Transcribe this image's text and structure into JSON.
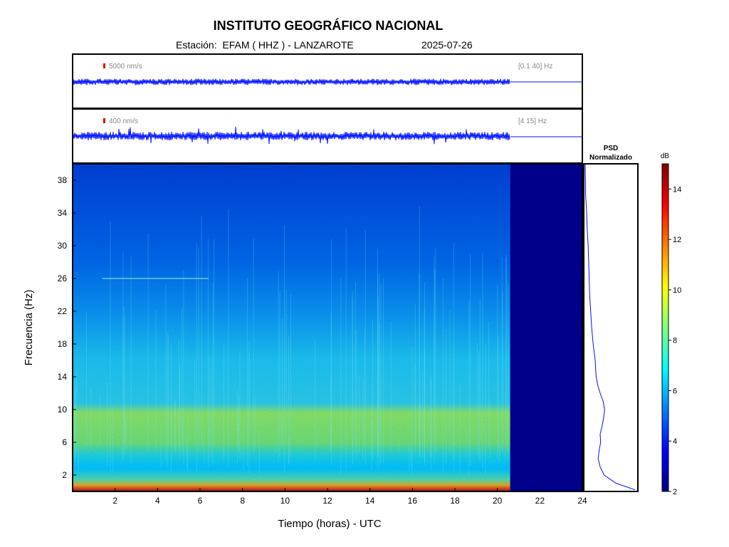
{
  "header": {
    "title": "INSTITUTO GEOGRÁFICO NACIONAL",
    "station_label": "Estación:",
    "station": "EFAM ( HHZ ) - LANZAROTE",
    "date": "2025-07-26"
  },
  "chart_data": [
    {
      "type": "line",
      "panel": "seismogram-broadband",
      "scale_label": "5000 nm/s",
      "band_label": "[0.1 40] Hz",
      "data_end_hour": 20.6,
      "x_range": [
        0,
        24
      ],
      "xlim": [
        0,
        24
      ]
    },
    {
      "type": "line",
      "panel": "seismogram-filtered",
      "scale_label": "400 nm/s",
      "band_label": "[4 15] Hz",
      "data_end_hour": 20.6,
      "xlim": [
        0,
        24
      ]
    },
    {
      "type": "heatmap",
      "panel": "spectrogram",
      "xlabel": "Tiempo (horas) - UTC",
      "ylabel": "Frecuencia  (Hz)",
      "xlim": [
        0,
        24
      ],
      "ylim": [
        0,
        40
      ],
      "x_ticks": [
        2,
        4,
        6,
        8,
        10,
        12,
        14,
        16,
        18,
        20,
        22,
        24
      ],
      "y_ticks": [
        2,
        6,
        10,
        14,
        18,
        22,
        26,
        30,
        34,
        38
      ],
      "data_end_hour": 20.6
    },
    {
      "type": "line",
      "panel": "psd",
      "title": "PSD\nNormalizado",
      "title_lines": [
        "PSD",
        "Normalizado"
      ],
      "frequency_hz": [
        0.2,
        1,
        2,
        3,
        4,
        5,
        6,
        7,
        8,
        9,
        10,
        11,
        12,
        13,
        14,
        16,
        18,
        20,
        22,
        24,
        26,
        28,
        30,
        32,
        34,
        36,
        38,
        40
      ],
      "normalized_psd": [
        1.0,
        0.62,
        0.38,
        0.3,
        0.26,
        0.28,
        0.31,
        0.3,
        0.34,
        0.37,
        0.39,
        0.36,
        0.3,
        0.25,
        0.22,
        0.2,
        0.16,
        0.13,
        0.11,
        0.09,
        0.08,
        0.07,
        0.06,
        0.04,
        0.03,
        0.01,
        0.005,
        0.0
      ]
    },
    {
      "type": "heatmap",
      "panel": "colorbar",
      "unit": "dB",
      "range": [
        2,
        15
      ],
      "ticks": [
        2,
        4,
        6,
        8,
        10,
        12,
        14
      ],
      "colors": [
        "#000080",
        "#0000ff",
        "#00bfff",
        "#00ffff",
        "#7fff7f",
        "#ffff00",
        "#ff7f00",
        "#ff0000",
        "#800000"
      ]
    }
  ]
}
